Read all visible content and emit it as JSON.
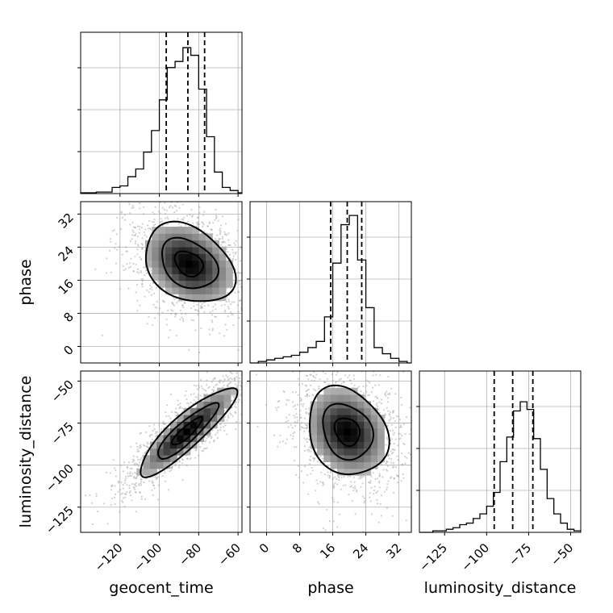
{
  "chart_data": {
    "type": "corner",
    "parameters": [
      "geocent_time",
      "phase",
      "luminosity_distance"
    ],
    "quantile_lines": "dashed",
    "grid": true,
    "histograms": [
      {
        "parameter": "geocent_time",
        "range": [
          -140,
          -58
        ],
        "bins": [
          -140,
          -132,
          -124,
          -120,
          -116,
          -112,
          -108,
          -104,
          -100,
          -96,
          -92,
          -88,
          -84,
          -80,
          -76,
          -72,
          -68,
          -64,
          -60,
          -58
        ],
        "counts": [
          0.005,
          0.01,
          0.04,
          0.05,
          0.11,
          0.16,
          0.27,
          0.41,
          0.61,
          0.82,
          0.86,
          0.95,
          0.9,
          0.68,
          0.37,
          0.14,
          0.04,
          0.02,
          0.005
        ],
        "quantiles": [
          -96.5,
          -85.5,
          -77
        ]
      },
      {
        "parameter": "phase",
        "range": [
          -4,
          35
        ],
        "bins": [
          -4,
          -2,
          0,
          2,
          4,
          6,
          8,
          10,
          12,
          14,
          16,
          18,
          20,
          22,
          24,
          26,
          28,
          30,
          32,
          34,
          35
        ],
        "counts": [
          0.0,
          0.01,
          0.02,
          0.03,
          0.04,
          0.05,
          0.07,
          0.1,
          0.14,
          0.3,
          0.65,
          0.9,
          0.96,
          0.67,
          0.36,
          0.1,
          0.06,
          0.03,
          0.01,
          0.0
        ],
        "quantiles": [
          15.5,
          19.5,
          23
        ]
      },
      {
        "parameter": "luminosity_distance",
        "range": [
          -140,
          -44
        ],
        "bins": [
          -140,
          -132,
          -124,
          -120,
          -116,
          -112,
          -108,
          -104,
          -100,
          -96,
          -92,
          -88,
          -84,
          -80,
          -76,
          -72,
          -68,
          -64,
          -60,
          -56,
          -52,
          -48,
          -44
        ],
        "counts": [
          0.0,
          0.01,
          0.02,
          0.03,
          0.05,
          0.06,
          0.09,
          0.12,
          0.17,
          0.26,
          0.46,
          0.62,
          0.79,
          0.85,
          0.8,
          0.61,
          0.41,
          0.22,
          0.12,
          0.06,
          0.02,
          0.01
        ],
        "quantiles": [
          -95.5,
          -84.5,
          -72.5
        ]
      }
    ],
    "pairs": [
      {
        "x": "geocent_time",
        "y": "phase",
        "xlim": [
          -140,
          -58
        ],
        "ylim": [
          -4,
          35
        ],
        "center": [
          -85,
          20
        ],
        "sigma": [
          13,
          5.5
        ],
        "correlation": -0.3,
        "peak": [
          -84,
          20
        ]
      },
      {
        "x": "geocent_time",
        "y": "luminosity_distance",
        "xlim": [
          -140,
          -58
        ],
        "ylim": [
          -140,
          -44
        ],
        "center": [
          -86,
          -80
        ],
        "sigma": [
          14,
          15
        ],
        "correlation": 0.88,
        "peak": [
          -86,
          -80
        ]
      },
      {
        "x": "phase",
        "y": "luminosity_distance",
        "xlim": [
          -4,
          35
        ],
        "ylim": [
          -140,
          -44
        ],
        "center": [
          19.5,
          -80
        ],
        "sigma": [
          5.5,
          15
        ],
        "correlation": -0.2,
        "peak": [
          19.5,
          -78
        ]
      }
    ],
    "ticks": {
      "geocent_time": [
        "−120",
        "−100",
        "−80",
        "−60"
      ],
      "geocent_time_values": [
        -120,
        -100,
        -80,
        -60
      ],
      "phase": [
        "0",
        "8",
        "16",
        "24",
        "32"
      ],
      "phase_values": [
        0,
        8,
        16,
        24,
        32
      ],
      "luminosity_distance": [
        "−125",
        "−100",
        "−75",
        "−50"
      ],
      "luminosity_distance_values": [
        -125,
        -100,
        -75,
        -50
      ]
    },
    "axis_labels": {
      "x": [
        "geocent_time",
        "phase",
        "luminosity_distance"
      ],
      "y": [
        "phase",
        "luminosity_distance"
      ]
    }
  }
}
